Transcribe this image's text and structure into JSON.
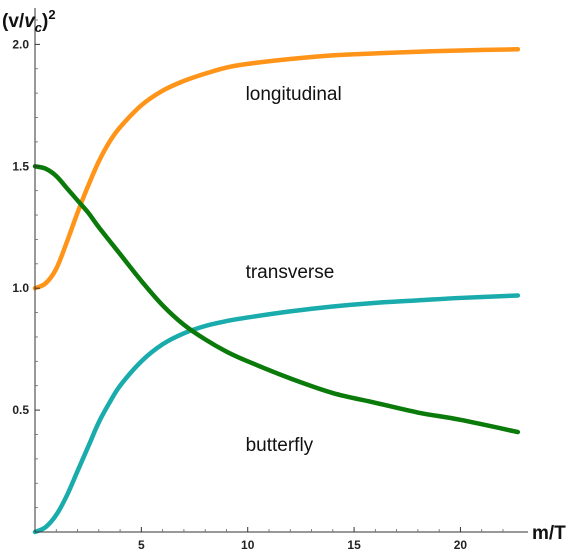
{
  "chart_data": {
    "type": "line",
    "title": "",
    "xlabel": "m/T",
    "ylabel": "(v/v_c)^2",
    "ylabel_parts": {
      "open": "(v/",
      "v": "v",
      "sub": "c",
      "close": ")",
      "sup": "2"
    },
    "xlim": [
      0,
      22.8
    ],
    "ylim": [
      0,
      2.1
    ],
    "x_ticks": [
      5,
      10,
      15,
      20
    ],
    "y_ticks": [
      0.5,
      1.0,
      1.5,
      2.0
    ],
    "x_tick_labels": [
      "5",
      "10",
      "15",
      "20"
    ],
    "y_tick_labels": [
      "0.5",
      "1.0",
      "1.5",
      "2.0"
    ],
    "grid": false,
    "legend": "none",
    "series": [
      {
        "name": "longitudinal",
        "color": "#ff9418",
        "x": [
          0,
          0.5,
          1,
          1.5,
          2,
          2.5,
          3,
          3.5,
          4,
          5,
          6,
          7,
          8,
          9,
          10,
          12,
          14,
          16,
          18,
          20,
          22.7
        ],
        "y": [
          1.0,
          1.02,
          1.08,
          1.19,
          1.31,
          1.42,
          1.52,
          1.6,
          1.66,
          1.75,
          1.81,
          1.85,
          1.88,
          1.905,
          1.92,
          1.94,
          1.955,
          1.963,
          1.97,
          1.975,
          1.98
        ]
      },
      {
        "name": "transverse",
        "color": "#1aacac",
        "x": [
          0,
          0.5,
          1,
          1.5,
          2,
          2.5,
          3,
          3.5,
          4,
          5,
          6,
          7,
          8,
          9,
          10,
          12,
          14,
          16,
          18,
          20,
          22.7
        ],
        "y": [
          0.0,
          0.02,
          0.07,
          0.15,
          0.25,
          0.35,
          0.45,
          0.53,
          0.6,
          0.7,
          0.77,
          0.815,
          0.845,
          0.865,
          0.88,
          0.905,
          0.925,
          0.94,
          0.95,
          0.96,
          0.97
        ]
      },
      {
        "name": "butterfly",
        "color": "#0a7a0a",
        "x": [
          0,
          0.5,
          1,
          1.5,
          2,
          2.5,
          3,
          4,
          5,
          6,
          7,
          8,
          9,
          10,
          12,
          14,
          16,
          18,
          20,
          22.7
        ],
        "y": [
          1.5,
          1.49,
          1.46,
          1.41,
          1.36,
          1.31,
          1.25,
          1.14,
          1.03,
          0.93,
          0.85,
          0.79,
          0.74,
          0.7,
          0.63,
          0.57,
          0.53,
          0.49,
          0.46,
          0.41
        ]
      }
    ],
    "annotations": [
      {
        "text": "longitudinal",
        "x": 9.9,
        "y": 1.8
      },
      {
        "text": "transverse",
        "x": 9.9,
        "y": 1.07
      },
      {
        "text": "butterfly",
        "x": 9.9,
        "y": 0.36
      }
    ]
  }
}
